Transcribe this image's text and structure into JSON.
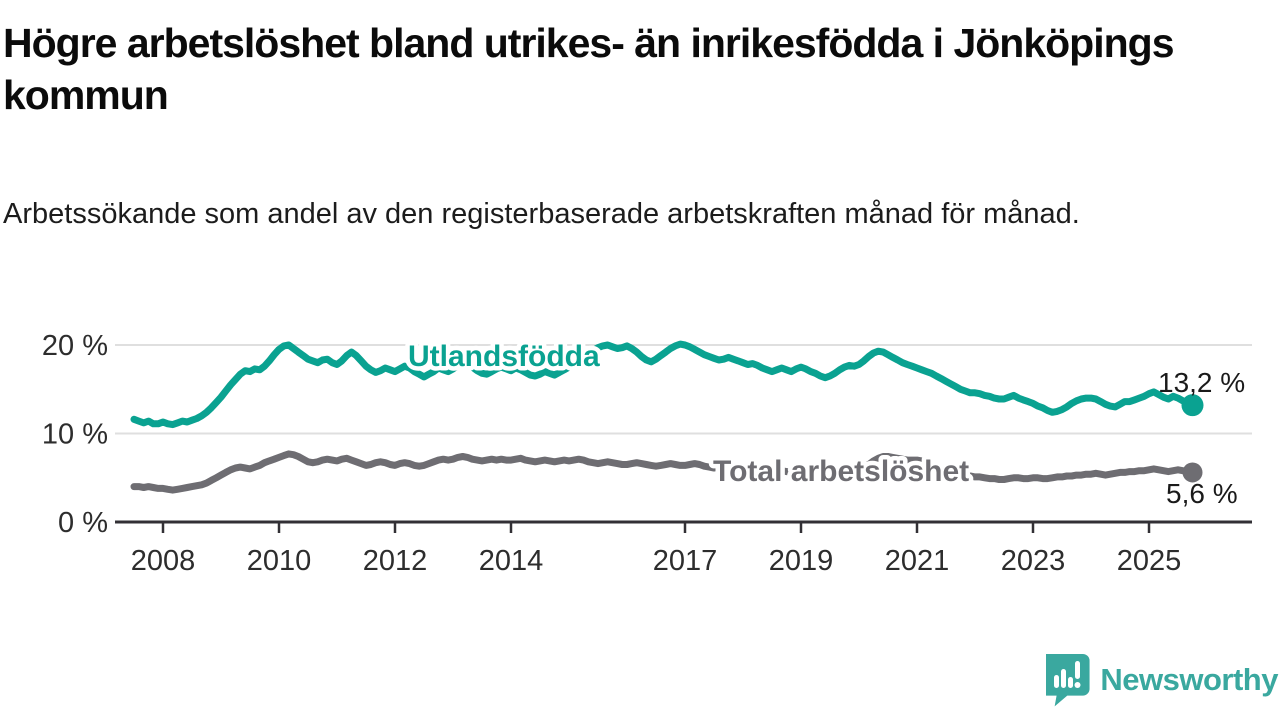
{
  "page": {
    "title": "Högre arbetslöshet bland utrikes- än inrikesfödda i Jönköpings kommun",
    "subtitle": "Arbetssökande som andel av den registerbaserade arbetskraften månad för månad.",
    "brand": {
      "name": "Newsworthy",
      "color": "#3AA89F",
      "icon": "newsworthy-speech-bubble-bar-chart-icon"
    }
  },
  "chart_data": {
    "type": "line",
    "title": "Högre arbetslöshet bland utrikes- än inrikesfödda i Jönköpings kommun",
    "subtitle": "Arbetssökande som andel av den registerbaserade arbetskraften månad för månad.",
    "xlabel": "",
    "ylabel": "",
    "unit": "%",
    "frequency": "monthly",
    "x_start": {
      "year": 2007,
      "month": 7
    },
    "x_end": {
      "year": 2025,
      "month": 10
    },
    "ylim": [
      0,
      22
    ],
    "grid": "horizontal",
    "legend_position": "inline-labels",
    "yticks": [
      {
        "value": 0,
        "label": "0 %"
      },
      {
        "value": 10,
        "label": "10 %"
      },
      {
        "value": 20,
        "label": "20 %"
      }
    ],
    "xticks": [
      {
        "year": 2008,
        "label": "2008"
      },
      {
        "year": 2010,
        "label": "2010"
      },
      {
        "year": 2012,
        "label": "2012"
      },
      {
        "year": 2014,
        "label": "2014"
      },
      {
        "year": 2017,
        "label": "2017"
      },
      {
        "year": 2019,
        "label": "2019"
      },
      {
        "year": 2021,
        "label": "2021"
      },
      {
        "year": 2023,
        "label": "2023"
      },
      {
        "year": 2025,
        "label": "2025"
      }
    ],
    "colors": {
      "axis": "#323035",
      "gridline": "#dfdfdf",
      "tick_text": "#2d2d2d",
      "end_label_text": "#1a1a1a"
    },
    "series": [
      {
        "name": "Utlandsfödda",
        "color": "#0AA291",
        "end_value": 13.2,
        "end_label": "13,2 %",
        "values": [
          11.6,
          11.4,
          11.2,
          11.4,
          11.1,
          11.1,
          11.3,
          11.1,
          11.0,
          11.2,
          11.4,
          11.3,
          11.5,
          11.7,
          12.0,
          12.4,
          12.9,
          13.5,
          14.1,
          14.8,
          15.5,
          16.1,
          16.7,
          17.1,
          17.0,
          17.3,
          17.2,
          17.6,
          18.2,
          18.9,
          19.5,
          19.9,
          20.0,
          19.6,
          19.2,
          18.8,
          18.4,
          18.2,
          18.0,
          18.3,
          18.4,
          18.0,
          17.8,
          18.2,
          18.8,
          19.2,
          18.8,
          18.2,
          17.6,
          17.2,
          16.9,
          17.1,
          17.4,
          17.2,
          17.0,
          17.3,
          17.6,
          17.4,
          17.0,
          16.7,
          16.4,
          16.7,
          17.0,
          17.4,
          17.2,
          17.0,
          17.3,
          17.7,
          18.0,
          17.8,
          17.5,
          17.1,
          16.8,
          16.7,
          17.0,
          17.3,
          17.5,
          17.3,
          17.1,
          17.4,
          17.2,
          16.9,
          16.6,
          16.5,
          16.7,
          17.0,
          16.8,
          16.6,
          16.9,
          17.2,
          17.5,
          17.9,
          18.3,
          18.7,
          19.1,
          19.4,
          19.7,
          19.9,
          20.0,
          19.8,
          19.6,
          19.7,
          19.9,
          19.6,
          19.2,
          18.7,
          18.3,
          18.1,
          18.4,
          18.8,
          19.2,
          19.6,
          19.9,
          20.1,
          20.0,
          19.8,
          19.5,
          19.2,
          18.9,
          18.7,
          18.5,
          18.3,
          18.4,
          18.6,
          18.4,
          18.2,
          18.0,
          17.8,
          17.9,
          17.7,
          17.4,
          17.2,
          17.0,
          17.2,
          17.4,
          17.2,
          17.0,
          17.3,
          17.5,
          17.3,
          17.0,
          16.8,
          16.5,
          16.3,
          16.5,
          16.8,
          17.2,
          17.5,
          17.7,
          17.6,
          17.8,
          18.2,
          18.7,
          19.1,
          19.3,
          19.2,
          18.9,
          18.6,
          18.3,
          18.0,
          17.8,
          17.6,
          17.4,
          17.2,
          17.0,
          16.8,
          16.5,
          16.2,
          15.9,
          15.6,
          15.3,
          15.0,
          14.8,
          14.6,
          14.6,
          14.5,
          14.3,
          14.2,
          14.0,
          13.9,
          13.9,
          14.1,
          14.3,
          14.0,
          13.8,
          13.6,
          13.4,
          13.1,
          12.9,
          12.6,
          12.4,
          12.5,
          12.7,
          13.0,
          13.4,
          13.7,
          13.9,
          14.0,
          14.0,
          13.9,
          13.6,
          13.3,
          13.1,
          13.0,
          13.3,
          13.6,
          13.6,
          13.8,
          14.0,
          14.2,
          14.5,
          14.7,
          14.4,
          14.1,
          13.9,
          14.2,
          14.0,
          13.7,
          13.4,
          13.2
        ]
      },
      {
        "name": "Total arbetslöshet",
        "color": "#6E6D72",
        "end_value": 5.6,
        "end_label": "5,6 %",
        "values": [
          4.0,
          4.0,
          3.9,
          4.0,
          3.9,
          3.8,
          3.8,
          3.7,
          3.6,
          3.7,
          3.8,
          3.9,
          4.0,
          4.1,
          4.2,
          4.4,
          4.7,
          5.0,
          5.3,
          5.6,
          5.9,
          6.1,
          6.2,
          6.1,
          6.0,
          6.2,
          6.4,
          6.7,
          6.9,
          7.1,
          7.3,
          7.5,
          7.7,
          7.6,
          7.4,
          7.1,
          6.8,
          6.7,
          6.8,
          7.0,
          7.1,
          7.0,
          6.9,
          7.1,
          7.2,
          7.0,
          6.8,
          6.6,
          6.4,
          6.5,
          6.7,
          6.8,
          6.7,
          6.5,
          6.4,
          6.6,
          6.7,
          6.6,
          6.4,
          6.3,
          6.4,
          6.6,
          6.8,
          7.0,
          7.1,
          7.0,
          7.1,
          7.3,
          7.4,
          7.3,
          7.1,
          7.0,
          6.9,
          7.0,
          7.1,
          7.0,
          7.1,
          7.0,
          7.0,
          7.1,
          7.2,
          7.0,
          6.9,
          6.8,
          6.9,
          7.0,
          6.9,
          6.8,
          6.9,
          7.0,
          6.9,
          7.0,
          7.1,
          7.0,
          6.8,
          6.7,
          6.6,
          6.7,
          6.8,
          6.7,
          6.6,
          6.5,
          6.5,
          6.6,
          6.7,
          6.6,
          6.5,
          6.4,
          6.3,
          6.4,
          6.5,
          6.6,
          6.5,
          6.4,
          6.4,
          6.5,
          6.6,
          6.5,
          6.3,
          6.2,
          6.1,
          6.2,
          6.3,
          6.2,
          6.1,
          6.0,
          5.9,
          6.0,
          6.1,
          6.0,
          5.8,
          5.7,
          5.6,
          5.7,
          5.8,
          5.7,
          5.6,
          5.5,
          5.5,
          5.6,
          5.7,
          5.6,
          5.5,
          5.4,
          5.5,
          5.6,
          5.7,
          5.8,
          5.8,
          5.9,
          6.0,
          6.2,
          6.5,
          6.9,
          7.2,
          7.4,
          7.4,
          7.3,
          7.2,
          7.1,
          7.0,
          7.0,
          7.0,
          6.9,
          6.8,
          6.6,
          6.3,
          6.1,
          5.9,
          5.7,
          5.6,
          5.4,
          5.3,
          5.2,
          5.1,
          5.1,
          5.0,
          4.9,
          4.9,
          4.8,
          4.8,
          4.9,
          5.0,
          5.0,
          4.9,
          4.9,
          5.0,
          5.0,
          4.9,
          4.9,
          5.0,
          5.1,
          5.1,
          5.2,
          5.2,
          5.3,
          5.3,
          5.4,
          5.4,
          5.5,
          5.4,
          5.3,
          5.4,
          5.5,
          5.6,
          5.6,
          5.7,
          5.7,
          5.8,
          5.8,
          5.9,
          6.0,
          5.9,
          5.8,
          5.7,
          5.8,
          5.9,
          5.8,
          5.7,
          5.6
        ]
      }
    ]
  }
}
